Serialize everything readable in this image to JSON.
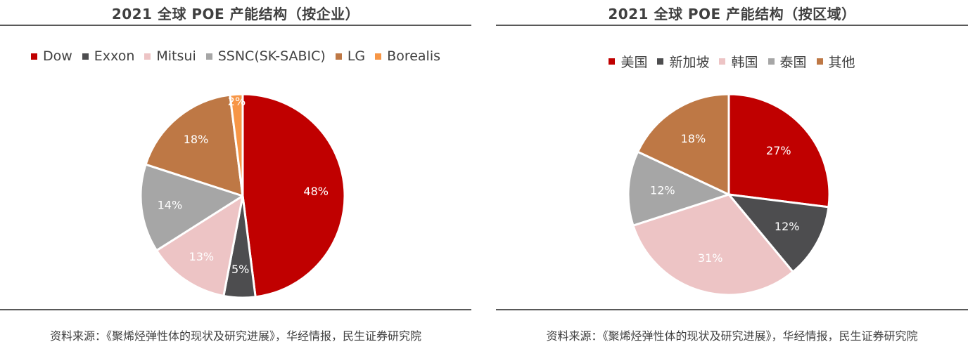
{
  "chart_data": [
    {
      "type": "pie",
      "title": "2021 全球 POE 产能结构（按企业）",
      "slices": [
        {
          "label": "Dow",
          "value": 48,
          "text": "48%",
          "color": "#C00000",
          "text_color": "#ffffff"
        },
        {
          "label": "Exxon",
          "value": 5,
          "text": "5%",
          "color": "#4D4D4F",
          "text_color": "#ffffff"
        },
        {
          "label": "Mitsui",
          "value": 13,
          "text": "13%",
          "color": "#EDC4C5",
          "text_color": "#ffffff"
        },
        {
          "label": "SSNC(SK-SABIC)",
          "value": 14,
          "text": "14%",
          "color": "#A6A6A6",
          "text_color": "#ffffff"
        },
        {
          "label": "LG",
          "value": 18,
          "text": "18%",
          "color": "#BE7845",
          "text_color": "#ffffff"
        },
        {
          "label": "Borealis",
          "value": 2,
          "text": "2%",
          "color": "#F79646",
          "text_color": "#ffffff"
        }
      ],
      "legend_position": "top",
      "source": "资料来源：《聚烯烃弹性体的现状及研究进展》，华经情报，民生证券研究院"
    },
    {
      "type": "pie",
      "title": "2021 全球 POE 产能结构（按区域）",
      "slices": [
        {
          "label": "美国",
          "value": 27,
          "text": "27%",
          "color": "#C00000",
          "text_color": "#ffffff"
        },
        {
          "label": "新加坡",
          "value": 12,
          "text": "12%",
          "color": "#4D4D4F",
          "text_color": "#ffffff"
        },
        {
          "label": "韩国",
          "value": 31,
          "text": "31%",
          "color": "#EDC4C5",
          "text_color": "#ffffff"
        },
        {
          "label": "泰国",
          "value": 12,
          "text": "12%",
          "color": "#A6A6A6",
          "text_color": "#ffffff"
        },
        {
          "label": "其他",
          "value": 18,
          "text": "18%",
          "color": "#BE7845",
          "text_color": "#ffffff"
        }
      ],
      "legend_position": "top",
      "source": "资料来源：《聚烯烃弹性体的现状及研究进展》，华经情报，民生证券研究院"
    }
  ]
}
